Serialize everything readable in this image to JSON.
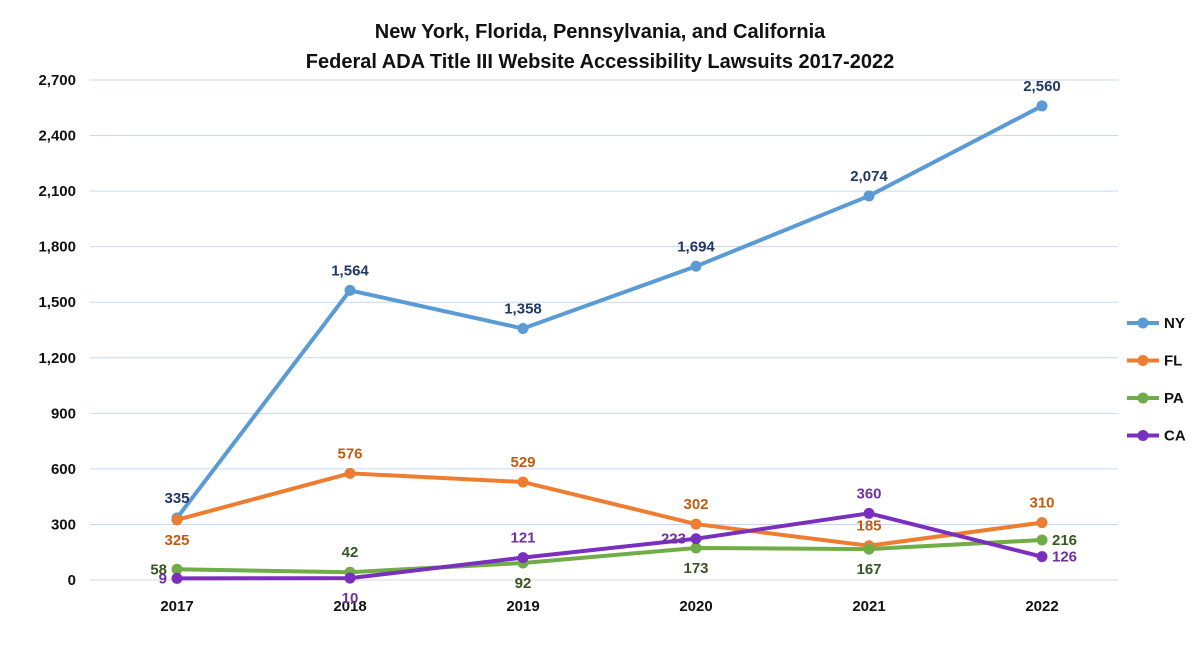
{
  "chart_data": {
    "type": "line",
    "title": [
      "New York, Florida, Pennsylvania, and California",
      "Federal ADA Title III Website Accessibility Lawsuits 2017-2022"
    ],
    "x": [
      "2017",
      "2018",
      "2019",
      "2020",
      "2021",
      "2022"
    ],
    "ylim": [
      0,
      2700
    ],
    "yticks": [
      0,
      300,
      600,
      900,
      1200,
      1500,
      1800,
      2100,
      2400,
      2700
    ],
    "ytick_labels": [
      "0",
      "300",
      "600",
      "900",
      "1,200",
      "1,500",
      "1,800",
      "2,100",
      "2,400",
      "2,700"
    ],
    "grid": true,
    "legend_position": "right",
    "series": [
      {
        "name": "NY",
        "color": "#5B9BD5",
        "label_color": "#1F3864",
        "values": [
          335,
          1564,
          1358,
          1694,
          2074,
          2560
        ],
        "labels": [
          "335",
          "1,564",
          "1,358",
          "1,694",
          "2,074",
          "2,560"
        ],
        "label_pos": [
          "above",
          "above",
          "above",
          "above",
          "above",
          "above"
        ]
      },
      {
        "name": "FL",
        "color": "#ED7D31",
        "label_color": "#C55A11",
        "values": [
          325,
          576,
          529,
          302,
          185,
          310
        ],
        "labels": [
          "325",
          "576",
          "529",
          "302",
          "185",
          "310"
        ],
        "label_pos": [
          "below",
          "above",
          "above",
          "above",
          "above",
          "above"
        ]
      },
      {
        "name": "PA",
        "color": "#70AD47",
        "label_color": "#375623",
        "values": [
          58,
          42,
          92,
          173,
          167,
          216
        ],
        "labels": [
          "58",
          "42",
          "92",
          "173",
          "167",
          "216"
        ],
        "label_pos": [
          "left",
          "above",
          "below",
          "below",
          "below",
          "right"
        ]
      },
      {
        "name": "CA",
        "color": "#7B2FBE",
        "label_color": "#7030A0",
        "values": [
          9,
          10,
          121,
          223,
          360,
          126
        ],
        "labels": [
          "9",
          "10",
          "121",
          "223",
          "360",
          "126"
        ],
        "label_pos": [
          "left",
          "below",
          "above",
          "left",
          "above",
          "right"
        ]
      }
    ]
  }
}
